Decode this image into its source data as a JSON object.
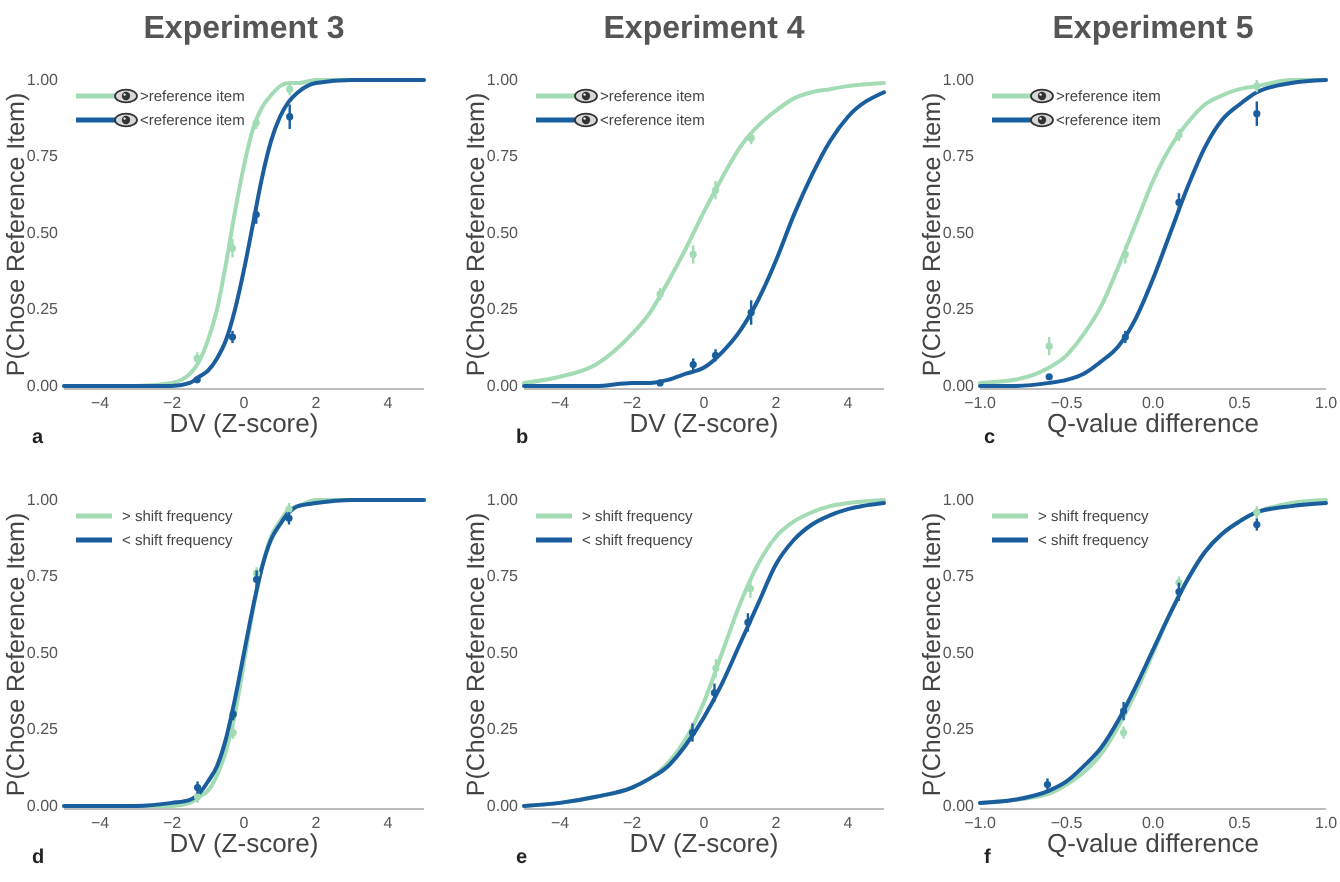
{
  "chart_data": [
    {
      "type": "line",
      "title": "Experiment 3",
      "xlabel": "DV (Z-score)",
      "ylabel": "P(Chose Reference Item)",
      "xlim": [
        -5,
        5
      ],
      "xticks": [
        {
          "value": -4,
          "label": "−4"
        },
        {
          "value": -2,
          "label": "−2"
        },
        0,
        2,
        4
      ],
      "ylim": [
        -0.01,
        1
      ],
      "yticks": [
        {
          "value": 0,
          "label": "0.00"
        },
        {
          "value": 0.25,
          "label": "0.25"
        },
        {
          "value": 0.5,
          "label": "0.50"
        },
        {
          "value": 0.75,
          "label": "0.75"
        },
        {
          "value": 1,
          "label": "1.00"
        }
      ],
      "legend": "top left",
      "annotations": [
        "a"
      ],
      "series": [
        {
          "name": ">reference item",
          "color": "#a3dbb5",
          "x": [
            -5,
            -3,
            -2,
            -1.5,
            -1.25,
            -1,
            -0.75,
            -0.5,
            -0.25,
            0,
            0.25,
            0.5,
            0.75,
            1,
            1.25,
            1.5,
            2,
            3,
            5
          ],
          "values": [
            0,
            0,
            0.01,
            0.04,
            0.08,
            0.15,
            0.25,
            0.4,
            0.57,
            0.72,
            0.84,
            0.91,
            0.95,
            0.98,
            0.99,
            0.99,
            1,
            1,
            1
          ]
        },
        {
          "name": "<reference item",
          "color": "#1b5e9e",
          "x": [
            -5,
            -3,
            -2,
            -1.5,
            -1.25,
            -1,
            -0.75,
            -0.5,
            -0.25,
            0,
            0.25,
            0.5,
            0.75,
            1,
            1.25,
            1.5,
            2,
            3,
            5
          ],
          "values": [
            0,
            0,
            0,
            0.01,
            0.03,
            0.05,
            0.09,
            0.15,
            0.25,
            0.38,
            0.53,
            0.68,
            0.8,
            0.88,
            0.93,
            0.96,
            0.99,
            1,
            1
          ]
        },
        {
          "type": "scatter",
          "color": "#a3dbb5",
          "marker": "circle",
          "x": [
            -1.3,
            -0.32,
            0.34,
            1.27
          ],
          "values": [
            0.09,
            0.45,
            0.86,
            0.97
          ],
          "errors": [
            0.02,
            0.03,
            0.02,
            0.02
          ]
        },
        {
          "type": "scatter",
          "color": "#1b5e9e",
          "marker": "circle",
          "x": [
            -1.3,
            -0.32,
            0.34,
            1.27
          ],
          "values": [
            0.02,
            0.16,
            0.56,
            0.88
          ],
          "errors": [
            null,
            0.02,
            0.03,
            0.04
          ]
        }
      ]
    },
    {
      "type": "line",
      "title": "Experiment 4",
      "xlabel": "DV (Z-score)",
      "ylabel": "P(Chose Reference Item)",
      "xlim": [
        -5,
        5
      ],
      "xticks": [
        {
          "value": -4,
          "label": "−4"
        },
        {
          "value": -2,
          "label": "−2"
        },
        0,
        2,
        4
      ],
      "ylim": [
        -0.01,
        1
      ],
      "yticks": [
        {
          "value": 0,
          "label": "0.00"
        },
        {
          "value": 0.25,
          "label": "0.25"
        },
        {
          "value": 0.5,
          "label": "0.50"
        },
        {
          "value": 0.75,
          "label": "0.75"
        },
        {
          "value": 1,
          "label": "1.00"
        }
      ],
      "legend": "top left",
      "annotations": [
        "b"
      ],
      "series": [
        {
          "name": ">reference item",
          "color": "#a3dbb5",
          "x": [
            -5,
            -4,
            -3,
            -2,
            -1.5,
            -1,
            -0.5,
            0,
            0.5,
            1,
            1.5,
            2,
            2.5,
            3,
            3.5,
            4,
            5
          ],
          "values": [
            0.01,
            0.03,
            0.07,
            0.17,
            0.24,
            0.34,
            0.45,
            0.57,
            0.68,
            0.78,
            0.85,
            0.9,
            0.94,
            0.96,
            0.97,
            0.98,
            0.99
          ]
        },
        {
          "name": "<reference item",
          "color": "#1b5e9e",
          "x": [
            -5,
            -4,
            -3,
            -2,
            -1.5,
            -1,
            -0.5,
            0,
            0.5,
            1,
            1.5,
            2,
            2.5,
            3,
            3.5,
            4,
            5
          ],
          "values": [
            0,
            0,
            0,
            0.01,
            0.01,
            0.02,
            0.04,
            0.06,
            0.11,
            0.18,
            0.28,
            0.41,
            0.56,
            0.69,
            0.8,
            0.88,
            0.96
          ]
        },
        {
          "type": "scatter",
          "color": "#a3dbb5",
          "marker": "circle",
          "x": [
            -1.22,
            -0.3,
            0.32,
            1.31
          ],
          "values": [
            0.3,
            0.43,
            0.64,
            0.81
          ],
          "errors": [
            0.02,
            0.03,
            0.03,
            0.02
          ]
        },
        {
          "type": "scatter",
          "color": "#1b5e9e",
          "marker": "circle",
          "x": [
            -1.22,
            -0.3,
            0.32,
            1.31
          ],
          "values": [
            0.01,
            0.07,
            0.1,
            0.24
          ],
          "errors": [
            null,
            0.02,
            0.02,
            0.04
          ]
        }
      ]
    },
    {
      "type": "line",
      "title": "Experiment 5",
      "xlabel": "Q-value difference",
      "ylabel": "P(Chose Reference Item)",
      "xlim": [
        -1,
        1
      ],
      "xticks": [
        {
          "value": -1,
          "label": "−1.0"
        },
        {
          "value": -0.5,
          "label": "−0.5"
        },
        {
          "value": 0,
          "label": "0.0"
        },
        {
          "value": 0.5,
          "label": "0.5"
        },
        {
          "value": 1,
          "label": "1.0"
        }
      ],
      "ylim": [
        -0.01,
        1
      ],
      "yticks": [
        {
          "value": 0,
          "label": "0.00"
        },
        {
          "value": 0.25,
          "label": "0.25"
        },
        {
          "value": 0.5,
          "label": "0.50"
        },
        {
          "value": 0.75,
          "label": "0.75"
        },
        {
          "value": 1,
          "label": "1.00"
        }
      ],
      "legend": "top left",
      "annotations": [
        "c"
      ],
      "series": [
        {
          "name": ">reference item",
          "color": "#a3dbb5",
          "x": [
            -1,
            -0.8,
            -0.6,
            -0.5,
            -0.4,
            -0.3,
            -0.2,
            -0.1,
            0,
            0.1,
            0.2,
            0.3,
            0.4,
            0.5,
            0.6,
            0.8,
            1
          ],
          "values": [
            0.01,
            0.02,
            0.06,
            0.1,
            0.17,
            0.26,
            0.39,
            0.53,
            0.67,
            0.78,
            0.86,
            0.92,
            0.95,
            0.97,
            0.98,
            1,
            1
          ]
        },
        {
          "name": "<reference item",
          "color": "#1b5e9e",
          "x": [
            -1,
            -0.8,
            -0.6,
            -0.5,
            -0.4,
            -0.3,
            -0.2,
            -0.1,
            0,
            0.1,
            0.2,
            0.3,
            0.4,
            0.5,
            0.6,
            0.8,
            1
          ],
          "values": [
            0,
            0,
            0.01,
            0.02,
            0.04,
            0.08,
            0.13,
            0.22,
            0.35,
            0.5,
            0.65,
            0.78,
            0.87,
            0.92,
            0.96,
            0.99,
            1
          ]
        },
        {
          "type": "scatter",
          "color": "#a3dbb5",
          "marker": "circle",
          "x": [
            -0.6,
            -0.16,
            0.15,
            0.6
          ],
          "values": [
            0.13,
            0.43,
            0.82,
            0.98
          ],
          "errors": [
            0.03,
            0.03,
            0.02,
            0.02
          ]
        },
        {
          "type": "scatter",
          "color": "#1b5e9e",
          "marker": "circle",
          "x": [
            -0.6,
            -0.16,
            0.15,
            0.6
          ],
          "values": [
            0.03,
            0.16,
            0.6,
            0.89
          ],
          "errors": [
            null,
            0.02,
            0.03,
            0.04
          ]
        }
      ]
    },
    {
      "type": "line",
      "xlabel": "DV (Z-score)",
      "ylabel": "P(Chose Reference Item)",
      "xlim": [
        -5,
        5
      ],
      "xticks": [
        {
          "value": -4,
          "label": "−4"
        },
        {
          "value": -2,
          "label": "−2"
        },
        0,
        2,
        4
      ],
      "ylim": [
        -0.01,
        1
      ],
      "yticks": [
        {
          "value": 0,
          "label": "0.00"
        },
        {
          "value": 0.25,
          "label": "0.25"
        },
        {
          "value": 0.5,
          "label": "0.50"
        },
        {
          "value": 0.75,
          "label": "0.75"
        },
        {
          "value": 1,
          "label": "1.00"
        }
      ],
      "legend": "top left",
      "annotations": [
        "d"
      ],
      "series": [
        {
          "name": "> shift frequency",
          "color": "#a3dbb5",
          "x": [
            -5,
            -3,
            -2,
            -1.5,
            -1.25,
            -1,
            -0.75,
            -0.5,
            -0.25,
            0,
            0.25,
            0.5,
            0.75,
            1,
            1.25,
            1.5,
            2,
            3,
            5
          ],
          "values": [
            0,
            0,
            0,
            0.01,
            0.03,
            0.05,
            0.1,
            0.18,
            0.3,
            0.47,
            0.64,
            0.78,
            0.88,
            0.93,
            0.97,
            0.98,
            1,
            1,
            1
          ]
        },
        {
          "name": "< shift frequency",
          "color": "#1b5e9e",
          "x": [
            -5,
            -3,
            -2,
            -1.5,
            -1.25,
            -1,
            -0.75,
            -0.5,
            -0.25,
            0,
            0.25,
            0.5,
            0.75,
            1,
            1.25,
            1.5,
            2,
            3,
            5
          ],
          "values": [
            0,
            0,
            0.01,
            0.02,
            0.04,
            0.08,
            0.13,
            0.22,
            0.35,
            0.5,
            0.65,
            0.78,
            0.87,
            0.92,
            0.96,
            0.98,
            0.99,
            1,
            1
          ]
        },
        {
          "type": "scatter",
          "color": "#a3dbb5",
          "marker": "circle",
          "x": [
            -1.29,
            -0.3,
            0.35,
            1.25
          ],
          "values": [
            0.03,
            0.24,
            0.76,
            0.97
          ],
          "errors": [
            0.02,
            0.02,
            0.02,
            0.02
          ]
        },
        {
          "type": "scatter",
          "color": "#1b5e9e",
          "marker": "circle",
          "x": [
            -1.29,
            -0.3,
            0.35,
            1.25
          ],
          "values": [
            0.06,
            0.3,
            0.74,
            0.94
          ],
          "errors": [
            0.02,
            0.02,
            0.03,
            0.02
          ]
        }
      ]
    },
    {
      "type": "line",
      "xlabel": "DV (Z-score)",
      "ylabel": "P(Chose Reference Item)",
      "xlim": [
        -5,
        5
      ],
      "xticks": [
        {
          "value": -4,
          "label": "−4"
        },
        {
          "value": -2,
          "label": "−2"
        },
        0,
        2,
        4
      ],
      "ylim": [
        -0.01,
        1
      ],
      "yticks": [
        {
          "value": 0,
          "label": "0.00"
        },
        {
          "value": 0.25,
          "label": "0.25"
        },
        {
          "value": 0.5,
          "label": "0.50"
        },
        {
          "value": 0.75,
          "label": "0.75"
        },
        {
          "value": 1,
          "label": "1.00"
        }
      ],
      "legend": "top left",
      "annotations": [
        "e"
      ],
      "series": [
        {
          "name": "> shift frequency",
          "color": "#a3dbb5",
          "x": [
            -5,
            -4,
            -3,
            -2,
            -1.5,
            -1,
            -0.5,
            0,
            0.5,
            1,
            1.5,
            2,
            2.5,
            3,
            3.5,
            4,
            5
          ],
          "values": [
            0,
            0.01,
            0.03,
            0.06,
            0.09,
            0.14,
            0.22,
            0.34,
            0.5,
            0.66,
            0.79,
            0.88,
            0.93,
            0.96,
            0.98,
            0.99,
            1
          ]
        },
        {
          "name": "< shift frequency",
          "color": "#1b5e9e",
          "x": [
            -5,
            -4,
            -3,
            -2,
            -1.5,
            -1,
            -0.5,
            0,
            0.5,
            1,
            1.5,
            2,
            2.5,
            3,
            3.5,
            4,
            5
          ],
          "values": [
            0,
            0.01,
            0.03,
            0.06,
            0.09,
            0.13,
            0.2,
            0.29,
            0.4,
            0.53,
            0.66,
            0.79,
            0.87,
            0.92,
            0.95,
            0.97,
            0.99
          ]
        },
        {
          "type": "scatter",
          "color": "#a3dbb5",
          "marker": "circle",
          "x": [
            0.33,
            1.29
          ],
          "values": [
            0.45,
            0.71
          ],
          "errors": [
            0.03,
            0.03
          ]
        },
        {
          "type": "scatter",
          "color": "#1b5e9e",
          "marker": "circle",
          "x": [
            -0.32,
            0.29,
            1.22
          ],
          "values": [
            0.24,
            0.37,
            0.6
          ],
          "errors": [
            0.03,
            0.03,
            0.03
          ]
        }
      ]
    },
    {
      "type": "line",
      "xlabel": "Q-value difference",
      "ylabel": "P(Chose Reference Item)",
      "xlim": [
        -1,
        1
      ],
      "xticks": [
        {
          "value": -1,
          "label": "−1.0"
        },
        {
          "value": -0.5,
          "label": "−0.5"
        },
        {
          "value": 0,
          "label": "0.0"
        },
        {
          "value": 0.5,
          "label": "0.5"
        },
        {
          "value": 1,
          "label": "1.0"
        }
      ],
      "ylim": [
        -0.01,
        1
      ],
      "yticks": [
        {
          "value": 0,
          "label": "0.00"
        },
        {
          "value": 0.25,
          "label": "0.25"
        },
        {
          "value": 0.5,
          "label": "0.50"
        },
        {
          "value": 0.75,
          "label": "0.75"
        },
        {
          "value": 1,
          "label": "1.00"
        }
      ],
      "legend": "top left",
      "annotations": [
        "f"
      ],
      "series": [
        {
          "name": "> shift frequency",
          "color": "#a3dbb5",
          "x": [
            -1,
            -0.8,
            -0.6,
            -0.5,
            -0.4,
            -0.3,
            -0.2,
            -0.1,
            0,
            0.1,
            0.2,
            0.3,
            0.4,
            0.5,
            0.6,
            0.8,
            1
          ],
          "values": [
            0.01,
            0.02,
            0.04,
            0.07,
            0.11,
            0.17,
            0.26,
            0.37,
            0.5,
            0.63,
            0.74,
            0.83,
            0.89,
            0.93,
            0.96,
            0.99,
            1
          ]
        },
        {
          "name": "< shift frequency",
          "color": "#1b5e9e",
          "x": [
            -1,
            -0.8,
            -0.6,
            -0.5,
            -0.4,
            -0.3,
            -0.2,
            -0.1,
            0,
            0.1,
            0.2,
            0.3,
            0.4,
            0.5,
            0.6,
            0.8,
            1
          ],
          "values": [
            0.01,
            0.02,
            0.05,
            0.08,
            0.13,
            0.19,
            0.28,
            0.39,
            0.51,
            0.63,
            0.74,
            0.83,
            0.89,
            0.93,
            0.96,
            0.98,
            0.99
          ]
        },
        {
          "type": "scatter",
          "color": "#a3dbb5",
          "marker": "circle",
          "x": [
            -0.17,
            0.15,
            0.6
          ],
          "values": [
            0.24,
            0.73,
            0.96
          ],
          "errors": [
            0.02,
            0.02,
            0.02
          ]
        },
        {
          "type": "scatter",
          "color": "#1b5e9e",
          "marker": "circle",
          "x": [
            -0.61,
            -0.17,
            0.15,
            0.6
          ],
          "values": [
            0.07,
            0.31,
            0.7,
            0.92
          ],
          "errors": [
            0.02,
            0.03,
            0.03,
            0.02
          ]
        }
      ]
    }
  ]
}
